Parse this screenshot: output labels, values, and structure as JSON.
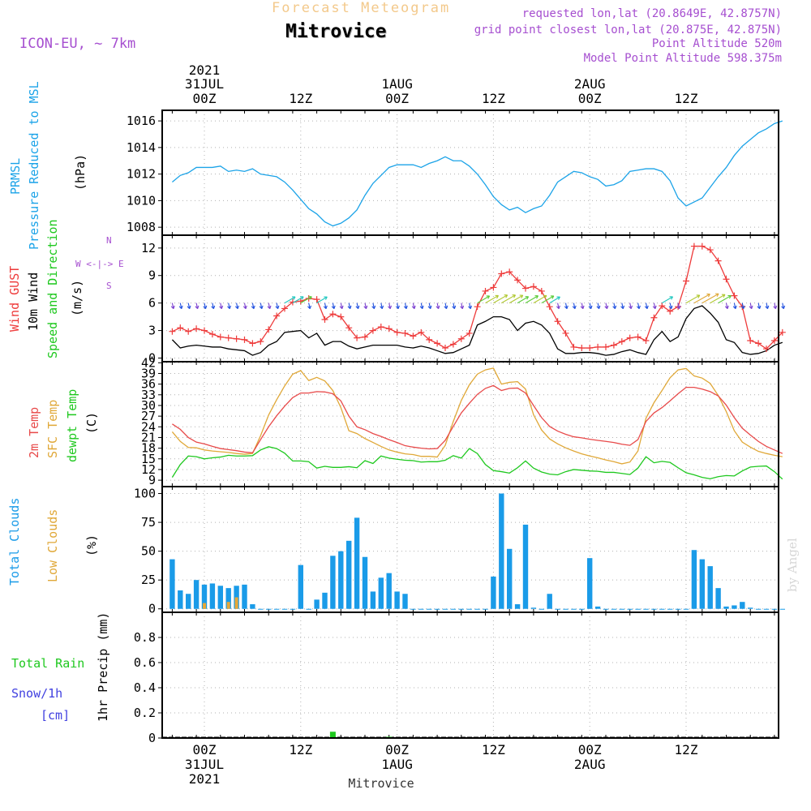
{
  "header": {
    "title": "Forecast Meteogram",
    "location": "Mitrovice",
    "model": "ICON-EU, ~ 7km",
    "requested": "requested lon,lat (20.8649E, 42.8757N)",
    "grid_point": "grid point closest lon,lat (20.875E, 42.875N)",
    "point_altitude": "Point Altitude 520m",
    "model_altitude": "Model Point Altitude 598.375m"
  },
  "time_axis": {
    "top_year": "2021",
    "top_labels": [
      "31JUL",
      "00Z",
      "12Z",
      "1AUG",
      "00Z",
      "12Z",
      "2AUG",
      "00Z",
      "12Z"
    ],
    "bottom_labels": [
      "00Z",
      "12Z",
      "00Z",
      "12Z",
      "00Z",
      "12Z"
    ],
    "bottom_dates": [
      "31JUL",
      "1AUG",
      "2AUG"
    ],
    "bottom_year": "2021",
    "footer": "Mitrovice"
  },
  "credit": "by Angel",
  "panel_labels": {
    "pressure_a": "PRMSL",
    "pressure_b": "Pressure Reduced to MSL",
    "pressure_unit": "(hPa)",
    "wind_gust": "Wind GUST",
    "wind_10m": "10m Wind",
    "wind_speed_dir": "Speed and Direction",
    "wind_unit": "(m/s)",
    "compass": "W <-|-> E",
    "compass_n": "N",
    "compass_s": "S",
    "temp_2m": "2m Temp",
    "temp_sfc": "SFC Temp",
    "temp_dewpt": "dewpt Temp",
    "temp_unit": "(C)",
    "cloud_total": "Total Clouds",
    "cloud_low": "Low Clouds",
    "cloud_unit": "(%)",
    "precip_rain": "Total  Rain",
    "precip_snow": "Snow/1h",
    "precip_snow_unit": "[cm]",
    "precip_axis": "1hr Precip (mm)"
  },
  "colors": {
    "pressure": "#1ba3e8",
    "gust": "#ee3b3b",
    "wind10m": "#000000",
    "temp2m": "#e84a4a",
    "tempsfc": "#e0a838",
    "dewpt": "#1ec81e",
    "total_clouds": "#1a9be8",
    "low_clouds": "#e8a838",
    "rain": "#1ec81e",
    "snow": "#4040e0",
    "wind_arrows": "#7a3fd0",
    "grid": "#b0b0b0"
  },
  "chart_data": [
    {
      "type": "line",
      "title": "PRMSL Pressure Reduced to MSL",
      "ylabel": "(hPa)",
      "ylim": [
        1007.4,
        1016.8
      ],
      "yticks": [
        1008,
        1010,
        1012,
        1014,
        1016
      ],
      "x_hours": [
        -4,
        -3,
        -2,
        -1,
        0,
        1,
        2,
        3,
        4,
        5,
        6,
        7,
        8,
        9,
        10,
        11,
        12,
        13,
        14,
        15,
        16,
        17,
        18,
        19,
        20,
        21,
        22,
        23,
        24,
        25,
        26,
        27,
        28,
        29,
        30,
        31,
        32,
        33,
        34,
        35,
        36,
        37,
        38,
        39,
        40,
        41,
        42,
        43,
        44,
        45,
        46,
        47,
        48,
        49,
        50,
        51,
        52,
        53,
        54,
        55,
        56,
        57,
        58,
        59,
        60,
        61,
        62,
        63,
        64,
        65,
        66,
        67,
        68,
        69,
        70,
        71,
        72
      ],
      "series": [
        {
          "name": "PRMSL",
          "values": [
            1011.4,
            1011.9,
            1012.1,
            1012.5,
            1012.5,
            1012.5,
            1012.6,
            1012.2,
            1012.3,
            1012.2,
            1012.4,
            1012.0,
            1011.9,
            1011.8,
            1011.4,
            1010.8,
            1010.1,
            1009.4,
            1009.0,
            1008.4,
            1008.1,
            1008.3,
            1008.7,
            1009.3,
            1010.4,
            1011.3,
            1011.9,
            1012.5,
            1012.7,
            1012.7,
            1012.7,
            1012.5,
            1012.8,
            1013.0,
            1013.3,
            1013.0,
            1013.0,
            1012.6,
            1012.0,
            1011.2,
            1010.3,
            1009.7,
            1009.3,
            1009.5,
            1009.1,
            1009.4,
            1009.6,
            1010.4,
            1011.4,
            1011.8,
            1012.2,
            1012.1,
            1011.8,
            1011.6,
            1011.1,
            1011.2,
            1011.5,
            1012.2,
            1012.3,
            1012.4,
            1012.4,
            1012.2,
            1011.5,
            1010.2,
            1009.6,
            1009.9,
            1010.2,
            1011.0,
            1011.8,
            1012.5,
            1013.4,
            1014.1,
            1014.6,
            1015.1,
            1015.4,
            1015.8,
            1016.0
          ]
        }
      ]
    },
    {
      "type": "line",
      "title": "Wind GUST / 10m Wind Speed and Direction",
      "ylabel": "(m/s)",
      "ylim": [
        -0.4,
        13.4
      ],
      "yticks": [
        0,
        3,
        6,
        9,
        12
      ],
      "x_hours": [
        -4,
        -3,
        -2,
        -1,
        0,
        1,
        2,
        3,
        4,
        5,
        6,
        7,
        8,
        9,
        10,
        11,
        12,
        13,
        14,
        15,
        16,
        17,
        18,
        19,
        20,
        21,
        22,
        23,
        24,
        25,
        26,
        27,
        28,
        29,
        30,
        31,
        32,
        33,
        34,
        35,
        36,
        37,
        38,
        39,
        40,
        41,
        42,
        43,
        44,
        45,
        46,
        47,
        48,
        49,
        50,
        51,
        52,
        53,
        54,
        55,
        56,
        57,
        58,
        59,
        60,
        61,
        62,
        63,
        64,
        65,
        66,
        67,
        68,
        69,
        70,
        71,
        72
      ],
      "series": [
        {
          "name": "Wind GUST",
          "values": [
            2.9,
            3.3,
            2.9,
            3.2,
            3.0,
            2.6,
            2.3,
            2.2,
            2.1,
            2.0,
            1.6,
            1.8,
            3.1,
            4.6,
            5.4,
            6.1,
            6.2,
            6.5,
            6.4,
            4.2,
            4.8,
            4.5,
            3.3,
            2.2,
            2.3,
            3.0,
            3.4,
            3.2,
            2.8,
            2.7,
            2.4,
            2.8,
            2.0,
            1.6,
            1.1,
            1.5,
            2.1,
            2.7,
            5.6,
            7.3,
            7.7,
            9.2,
            9.4,
            8.5,
            7.6,
            7.8,
            7.3,
            5.6,
            4.0,
            2.7,
            1.2,
            1.1,
            1.1,
            1.2,
            1.2,
            1.4,
            1.8,
            2.2,
            2.3,
            1.9,
            4.4,
            5.7,
            5.1,
            5.6,
            8.4,
            12.2,
            12.2,
            11.8,
            10.6,
            8.6,
            6.8,
            5.6,
            1.9,
            1.6,
            1.0,
            1.9,
            2.8
          ]
        },
        {
          "name": "10m Wind",
          "values": [
            2.0,
            1.1,
            1.3,
            1.4,
            1.3,
            1.2,
            1.2,
            1.0,
            0.9,
            0.8,
            0.3,
            0.6,
            1.4,
            1.8,
            2.8,
            2.9,
            3.0,
            2.2,
            2.7,
            1.4,
            1.8,
            1.8,
            1.3,
            1.0,
            1.2,
            1.4,
            1.4,
            1.4,
            1.4,
            1.2,
            1.1,
            1.3,
            1.1,
            0.8,
            0.5,
            0.6,
            1.0,
            1.4,
            3.6,
            4.0,
            4.5,
            4.5,
            4.2,
            3.0,
            3.8,
            4.0,
            3.6,
            2.7,
            1.0,
            0.5,
            0.5,
            0.6,
            0.6,
            0.5,
            0.3,
            0.4,
            0.7,
            0.9,
            0.6,
            0.4,
            2.0,
            2.9,
            1.8,
            2.3,
            4.3,
            5.4,
            5.7,
            4.9,
            3.9,
            2.0,
            1.7,
            0.6,
            0.4,
            0.5,
            0.8,
            1.4,
            1.7
          ]
        },
        {
          "name": "Wind Direction Arrows",
          "values": [
            6.0
          ]
        }
      ]
    },
    {
      "type": "line",
      "title": "2m Temp / SFC Temp / dewpt Temp",
      "ylabel": "(C)",
      "ylim": [
        7.2,
        42.3
      ],
      "yticks": [
        9,
        12,
        15,
        18,
        21,
        24,
        27,
        30,
        33,
        36,
        39,
        42
      ],
      "x_hours": [
        -4,
        -3,
        -2,
        -1,
        0,
        1,
        2,
        3,
        4,
        5,
        6,
        7,
        8,
        9,
        10,
        11,
        12,
        13,
        14,
        15,
        16,
        17,
        18,
        19,
        20,
        21,
        22,
        23,
        24,
        25,
        26,
        27,
        28,
        29,
        30,
        31,
        32,
        33,
        34,
        35,
        36,
        37,
        38,
        39,
        40,
        41,
        42,
        43,
        44,
        45,
        46,
        47,
        48,
        49,
        50,
        51,
        52,
        53,
        54,
        55,
        56,
        57,
        58,
        59,
        60,
        61,
        62,
        63,
        64,
        65,
        66,
        67,
        68,
        69,
        70,
        71,
        72
      ],
      "series": [
        {
          "name": "2m Temp",
          "values": [
            24.8,
            23.3,
            21.0,
            19.7,
            19.2,
            18.5,
            17.9,
            17.6,
            17.3,
            16.9,
            16.7,
            20.4,
            24.0,
            27.1,
            29.8,
            32.2,
            33.5,
            33.5,
            33.9,
            33.8,
            33.3,
            31.3,
            27.0,
            24.0,
            23.2,
            22.1,
            21.3,
            20.4,
            19.6,
            18.7,
            18.3,
            18.0,
            17.8,
            17.9,
            20.2,
            24.1,
            27.9,
            30.6,
            33.1,
            34.8,
            35.6,
            34.2,
            34.8,
            34.9,
            33.5,
            30.0,
            26.6,
            24.1,
            22.8,
            21.9,
            21.2,
            20.9,
            20.5,
            20.2,
            19.9,
            19.6,
            19.1,
            18.8,
            20.4,
            25.5,
            27.9,
            29.4,
            31.3,
            33.3,
            35.1,
            35.1,
            34.6,
            33.9,
            32.7,
            30.1,
            26.6,
            23.6,
            21.7,
            19.9,
            18.5,
            17.5,
            16.5
          ]
        },
        {
          "name": "SFC Temp",
          "values": [
            22.6,
            19.9,
            18.2,
            18.1,
            17.5,
            17.2,
            17.0,
            16.8,
            16.5,
            16.3,
            16.5,
            21.5,
            27.3,
            31.6,
            35.5,
            38.8,
            39.8,
            37.0,
            37.9,
            36.9,
            34.2,
            29.4,
            22.9,
            22.1,
            20.7,
            19.6,
            18.5,
            17.5,
            16.9,
            16.4,
            16.2,
            15.7,
            15.7,
            15.5,
            18.8,
            25.5,
            31.4,
            35.8,
            38.8,
            40.0,
            40.5,
            36.0,
            36.5,
            36.7,
            34.6,
            27.4,
            23.1,
            20.6,
            19.2,
            18.1,
            17.2,
            16.4,
            15.8,
            15.3,
            14.7,
            14.2,
            13.6,
            14.1,
            17.2,
            26.4,
            30.8,
            34.2,
            37.8,
            40.0,
            40.4,
            38.3,
            37.7,
            36.2,
            32.8,
            28.3,
            22.9,
            19.7,
            18.3,
            17.1,
            16.5,
            16.0,
            15.6
          ]
        },
        {
          "name": "dewpt Temp",
          "values": [
            9.8,
            13.4,
            15.8,
            15.6,
            15.0,
            15.3,
            15.5,
            16.0,
            15.8,
            15.8,
            15.9,
            17.5,
            18.4,
            17.9,
            16.6,
            14.4,
            14.4,
            14.2,
            12.4,
            12.9,
            12.6,
            12.6,
            12.8,
            12.5,
            14.5,
            13.7,
            15.8,
            15.2,
            14.9,
            14.6,
            14.5,
            14.1,
            14.2,
            14.2,
            14.6,
            15.9,
            15.2,
            17.9,
            16.5,
            13.4,
            11.7,
            11.4,
            11.0,
            12.5,
            14.4,
            12.4,
            11.3,
            10.7,
            10.5,
            11.4,
            12.0,
            11.8,
            11.6,
            11.5,
            11.2,
            11.2,
            10.9,
            10.6,
            12.4,
            15.6,
            13.9,
            14.3,
            14.0,
            12.5,
            11.1,
            10.5,
            9.8,
            9.4,
            10.0,
            10.3,
            10.2,
            11.6,
            12.7,
            12.9,
            13.0,
            11.4,
            9.3
          ]
        }
      ]
    },
    {
      "type": "bar",
      "title": "Total Clouds / Low Clouds",
      "ylabel": "(%)",
      "ylim": [
        -3,
        106
      ],
      "yticks": [
        0,
        25,
        50,
        75,
        100
      ],
      "x_hours": [
        -4,
        -3,
        -2,
        -1,
        0,
        1,
        2,
        3,
        4,
        5,
        6,
        7,
        8,
        9,
        10,
        11,
        12,
        13,
        14,
        15,
        16,
        17,
        18,
        19,
        20,
        21,
        22,
        23,
        24,
        25,
        26,
        27,
        28,
        29,
        30,
        31,
        32,
        33,
        34,
        35,
        36,
        37,
        38,
        39,
        40,
        41,
        42,
        43,
        44,
        45,
        46,
        47,
        48,
        49,
        50,
        51,
        52,
        53,
        54,
        55,
        56,
        57,
        58,
        59,
        60,
        61,
        62,
        63,
        64,
        65,
        66,
        67,
        68,
        69,
        70,
        71,
        72
      ],
      "series": [
        {
          "name": "Total Clouds",
          "values": [
            43,
            16,
            13,
            25,
            21,
            22,
            20,
            18,
            20,
            21,
            4,
            0,
            0,
            0,
            0,
            0,
            38,
            0,
            8,
            14,
            46,
            50,
            59,
            79,
            45,
            15,
            27,
            31,
            15,
            13,
            0,
            0,
            0,
            0,
            0,
            0,
            0,
            0,
            0,
            0,
            28,
            100,
            52,
            4,
            73,
            1,
            0,
            13,
            0,
            0,
            0,
            0,
            44,
            2,
            0,
            0,
            0,
            0,
            0,
            0,
            0,
            0,
            0,
            0,
            0,
            51,
            43,
            37,
            18,
            2,
            3,
            6,
            1,
            0,
            0,
            0,
            0
          ]
        },
        {
          "name": "Low Clouds",
          "values": [
            0,
            0,
            0,
            0,
            5,
            0,
            0,
            6,
            10,
            0,
            0,
            0,
            0,
            0,
            0,
            0,
            0,
            0,
            0,
            0,
            0,
            0,
            0,
            0,
            0,
            0,
            0,
            0,
            0,
            0,
            0,
            0,
            0,
            0,
            0,
            0,
            0,
            0,
            0,
            0,
            0,
            0,
            0,
            0,
            0,
            0,
            0,
            0,
            0,
            0,
            0,
            0,
            0,
            0,
            0,
            0,
            0,
            0,
            0,
            0,
            0,
            0,
            0,
            0,
            0,
            0,
            0,
            0,
            0,
            0,
            0,
            0,
            0,
            0,
            0,
            0,
            0
          ]
        }
      ]
    },
    {
      "type": "bar",
      "title": "Total Rain / Snow/1h",
      "ylabel": "1hr Precip (mm)",
      "ylim": [
        0,
        1.0
      ],
      "yticks": [
        0,
        0.2,
        0.4,
        0.6,
        0.8
      ],
      "x_hours": [
        16,
        23
      ],
      "series": [
        {
          "name": "Total Rain",
          "values": [
            0.05,
            0.01
          ]
        },
        {
          "name": "Snow/1h",
          "values": [
            0,
            0
          ]
        }
      ]
    }
  ]
}
